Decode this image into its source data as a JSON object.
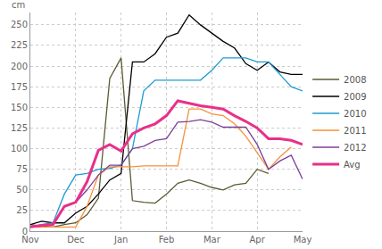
{
  "chart_data": {
    "type": "line",
    "ylabel": "cm",
    "categories": [
      "Nov",
      null,
      null,
      null,
      "Dec",
      null,
      null,
      null,
      "Jan",
      null,
      null,
      null,
      "Feb",
      null,
      null,
      null,
      "Mar",
      null,
      null,
      null,
      "Apr",
      null,
      null,
      null,
      "May"
    ],
    "series": [
      {
        "name": "2008",
        "color": "#5c5a32",
        "values": [
          8,
          6,
          5,
          8,
          10,
          20,
          40,
          185,
          210,
          37,
          35,
          34,
          45,
          58,
          62,
          58,
          53,
          50,
          56,
          58,
          75,
          70,
          null,
          null,
          null
        ]
      },
      {
        "name": "2009",
        "color": "#000000",
        "values": [
          8,
          12,
          10,
          10,
          22,
          30,
          45,
          62,
          70,
          205,
          205,
          215,
          235,
          240,
          262,
          250,
          240,
          230,
          222,
          203,
          195,
          205,
          193,
          190,
          190
        ]
      },
      {
        "name": "2010",
        "color": "#1f9bd1",
        "values": [
          5,
          8,
          10,
          45,
          68,
          70,
          75,
          76,
          80,
          100,
          170,
          183,
          183,
          183,
          183,
          183,
          195,
          210,
          210,
          210,
          205,
          205,
          190,
          175,
          170
        ]
      },
      {
        "name": "2011",
        "color": "#f7913a",
        "values": [
          5,
          5,
          5,
          5,
          5,
          30,
          68,
          78,
          78,
          78,
          79,
          79,
          79,
          79,
          148,
          148,
          142,
          140,
          130,
          115,
          95,
          75,
          90,
          102,
          null
        ]
      },
      {
        "name": "2012",
        "color": "#7a3f99",
        "values": [
          5,
          6,
          8,
          30,
          35,
          50,
          68,
          80,
          80,
          100,
          103,
          110,
          112,
          132,
          133,
          135,
          132,
          126,
          126,
          126,
          105,
          75,
          85,
          92,
          63
        ]
      },
      {
        "name": "Avg",
        "color": "#e8308a",
        "line_style": "thick",
        "values": [
          5,
          7,
          8,
          30,
          35,
          60,
          98,
          105,
          97,
          118,
          125,
          130,
          140,
          158,
          155,
          152,
          150,
          148,
          140,
          133,
          125,
          112,
          112,
          110,
          105
        ]
      }
    ],
    "ylim": [
      0,
      265
    ],
    "yticks": [
      0,
      25,
      50,
      75,
      100,
      125,
      150,
      175,
      200,
      225,
      250
    ],
    "grid": true,
    "legend": "right"
  }
}
